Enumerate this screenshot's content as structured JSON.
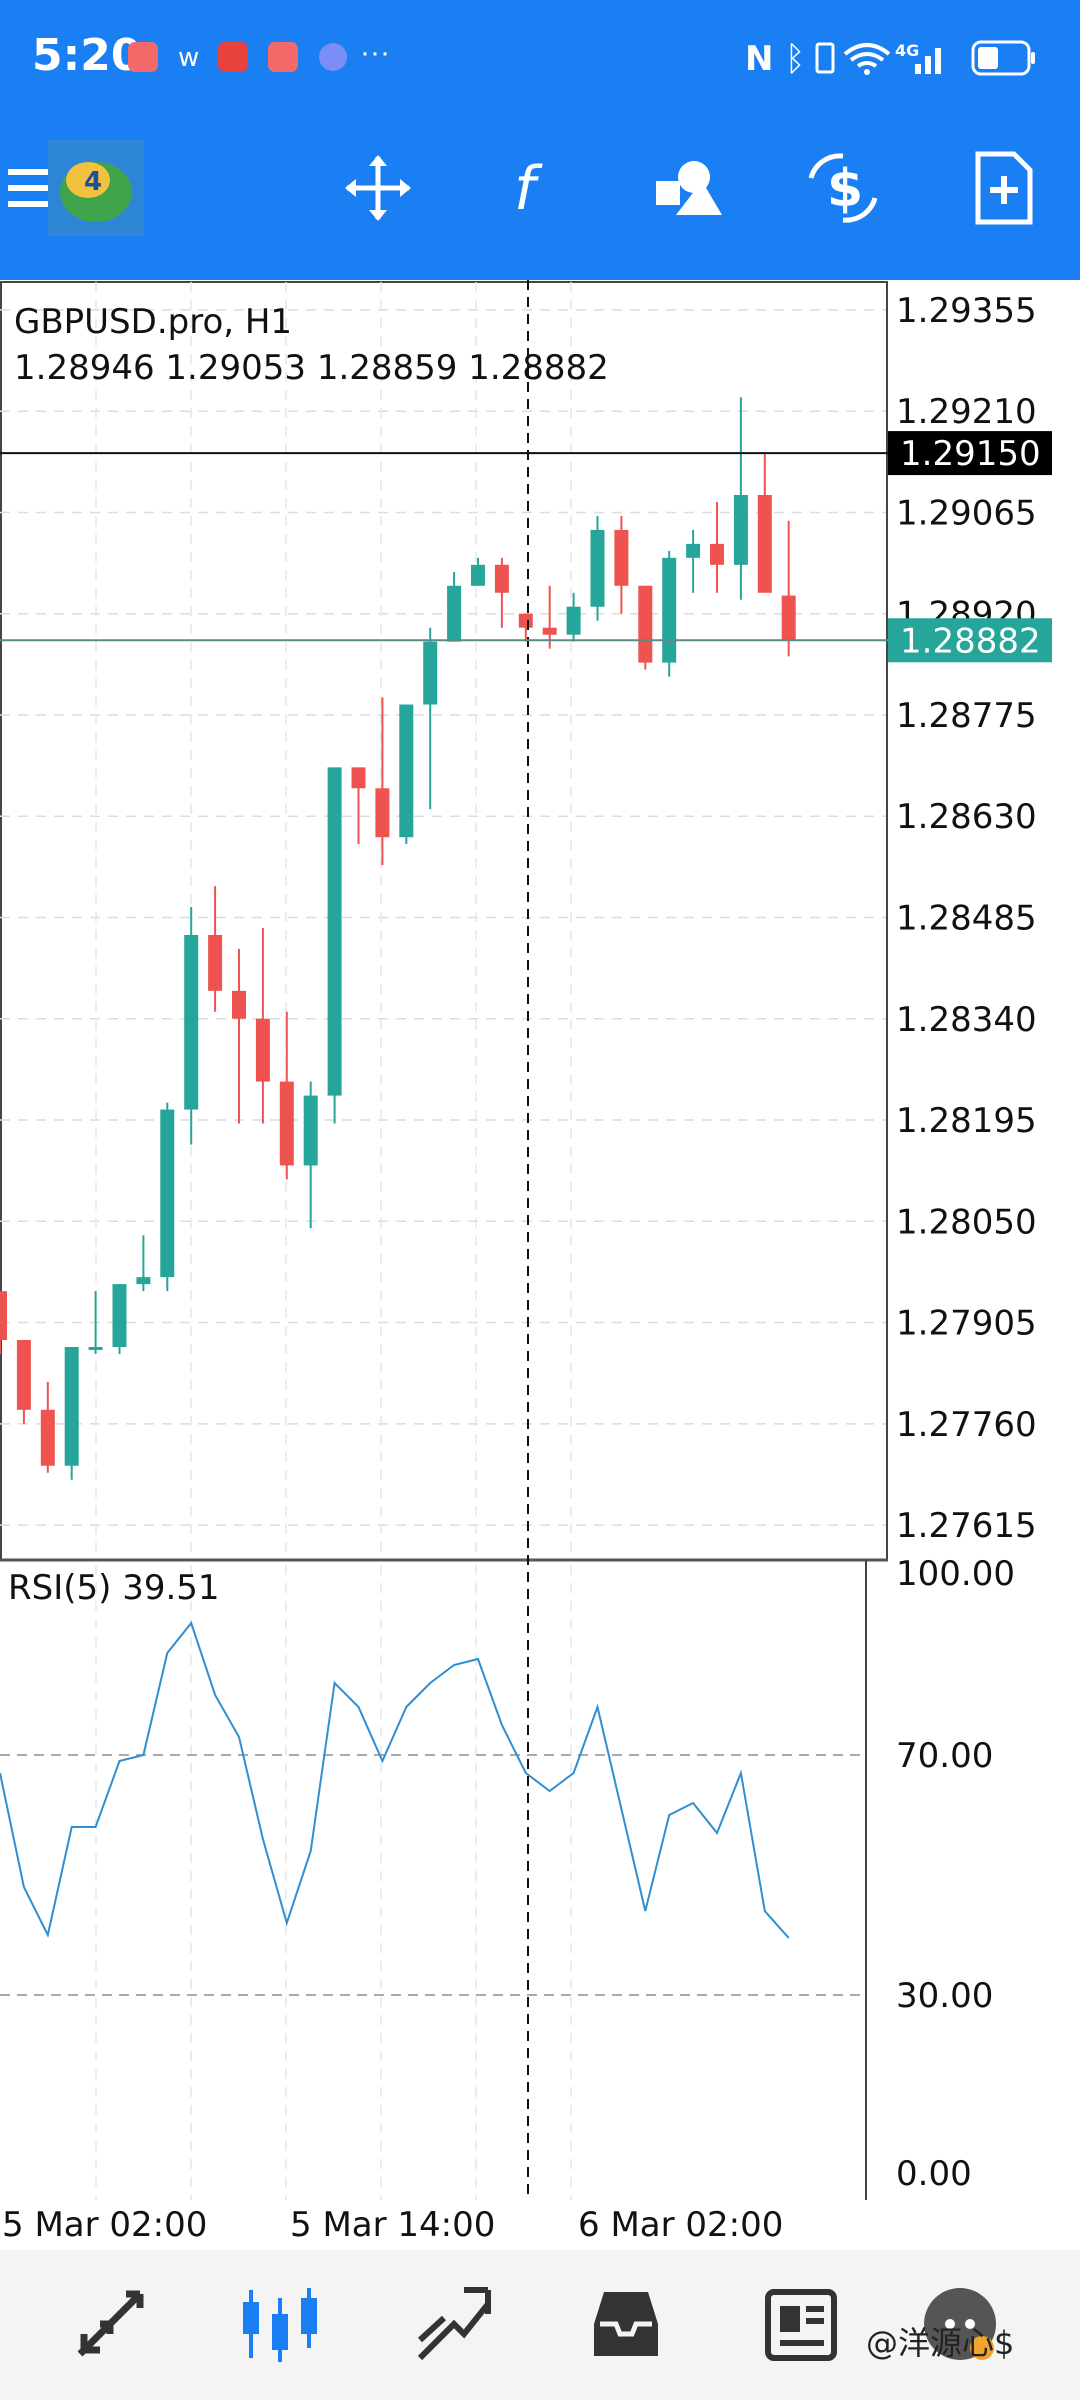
{
  "status_bar": {
    "time": "5:20",
    "icons": [
      "huawei-app-icon",
      "weibo-icon",
      "app-icon",
      "huawei-app-icon",
      "browser-icon",
      "more-icon",
      "nfc-icon",
      "bluetooth-icon",
      "vibrate-icon",
      "wifi-icon",
      "cellular-4g-icon",
      "battery-icon"
    ],
    "more": "···"
  },
  "toolbar": {
    "buttons": [
      "menu-icon",
      "mt4-logo",
      "crosshair-move-icon",
      "function-icon",
      "shapes-icon",
      "dollar-trade-icon",
      "new-document-icon"
    ]
  },
  "chart": {
    "symbol": "GBPUSD.pro, H1",
    "ohlc": "1.28946 1.29053 1.28859 1.28882",
    "price_labels": [
      "1.29355",
      "1.29210",
      "1.29065",
      "1.28920",
      "1.28775",
      "1.28630",
      "1.28485",
      "1.28340",
      "1.28195",
      "1.28050",
      "1.27905",
      "1.27760",
      "1.27615"
    ],
    "crosshair_price": "1.29150",
    "bid_price": "1.28882",
    "time_labels": [
      "5 Mar 02:00",
      "5 Mar 14:00",
      "6 Mar 02:00"
    ],
    "rsi_label": "RSI(5) 39.51",
    "rsi_levels": [
      "100.00",
      "70.00",
      "30.00",
      "0.00"
    ]
  },
  "chart_data": {
    "type": "candlestick",
    "symbol": "GBPUSD.pro",
    "timeframe": "H1",
    "ylim": [
      1.27565,
      1.29395
    ],
    "up_color": "#26a69a",
    "down_color": "#ef5350",
    "candles": [
      {
        "o": 1.2795,
        "h": 1.2795,
        "l": 1.2786,
        "c": 1.2788
      },
      {
        "o": 1.2788,
        "h": 1.2788,
        "l": 1.2776,
        "c": 1.2778
      },
      {
        "o": 1.2778,
        "h": 1.2782,
        "l": 1.2769,
        "c": 1.277
      },
      {
        "o": 1.277,
        "h": 1.2787,
        "l": 1.2768,
        "c": 1.2787
      },
      {
        "o": 1.2787,
        "h": 1.2795,
        "l": 1.2786,
        "c": 1.2787
      },
      {
        "o": 1.2787,
        "h": 1.2796,
        "l": 1.2786,
        "c": 1.2796
      },
      {
        "o": 1.2796,
        "h": 1.2803,
        "l": 1.2795,
        "c": 1.2797
      },
      {
        "o": 1.2797,
        "h": 1.2822,
        "l": 1.2795,
        "c": 1.2821
      },
      {
        "o": 1.2821,
        "h": 1.285,
        "l": 1.2816,
        "c": 1.2846
      },
      {
        "o": 1.2846,
        "h": 1.2853,
        "l": 1.2835,
        "c": 1.2838
      },
      {
        "o": 1.2838,
        "h": 1.2844,
        "l": 1.2819,
        "c": 1.2834
      },
      {
        "o": 1.2834,
        "h": 1.2847,
        "l": 1.2819,
        "c": 1.2825
      },
      {
        "o": 1.2825,
        "h": 1.2835,
        "l": 1.2811,
        "c": 1.2813
      },
      {
        "o": 1.2813,
        "h": 1.2825,
        "l": 1.2804,
        "c": 1.2823
      },
      {
        "o": 1.2823,
        "h": 1.287,
        "l": 1.2819,
        "c": 1.287
      },
      {
        "o": 1.287,
        "h": 1.287,
        "l": 1.2859,
        "c": 1.2867
      },
      {
        "o": 1.2867,
        "h": 1.288,
        "l": 1.2856,
        "c": 1.286
      },
      {
        "o": 1.286,
        "h": 1.2879,
        "l": 1.2859,
        "c": 1.2879
      },
      {
        "o": 1.2879,
        "h": 1.289,
        "l": 1.2864,
        "c": 1.2888
      },
      {
        "o": 1.2888,
        "h": 1.2898,
        "l": 1.2888,
        "c": 1.2896
      },
      {
        "o": 1.2896,
        "h": 1.29,
        "l": 1.2896,
        "c": 1.2899
      },
      {
        "o": 1.2899,
        "h": 1.29,
        "l": 1.289,
        "c": 1.2895
      },
      {
        "o": 1.2892,
        "h": 1.2892,
        "l": 1.2888,
        "c": 1.289
      },
      {
        "o": 1.289,
        "h": 1.2896,
        "l": 1.2887,
        "c": 1.2889
      },
      {
        "o": 1.2889,
        "h": 1.2895,
        "l": 1.2888,
        "c": 1.2893
      },
      {
        "o": 1.2893,
        "h": 1.2906,
        "l": 1.2891,
        "c": 1.2904
      },
      {
        "o": 1.2904,
        "h": 1.2906,
        "l": 1.2892,
        "c": 1.2896
      },
      {
        "o": 1.2896,
        "h": 1.2896,
        "l": 1.2884,
        "c": 1.2885
      },
      {
        "o": 1.2885,
        "h": 1.2901,
        "l": 1.2883,
        "c": 1.29
      },
      {
        "o": 1.29,
        "h": 1.2904,
        "l": 1.2895,
        "c": 1.2902
      },
      {
        "o": 1.2902,
        "h": 1.2908,
        "l": 1.2895,
        "c": 1.2899
      },
      {
        "o": 1.2899,
        "h": 1.2923,
        "l": 1.2894,
        "c": 1.2909
      },
      {
        "o": 1.2909,
        "h": 1.2915,
        "l": 1.2896,
        "c": 1.2895
      },
      {
        "o": 1.28946,
        "h": 1.29053,
        "l": 1.28859,
        "c": 1.28882
      }
    ],
    "rsi": {
      "name": "RSI(5)",
      "ylim": [
        0,
        100
      ],
      "levels": [
        70,
        30
      ],
      "values": [
        67,
        48,
        40,
        58,
        58,
        69,
        70,
        87,
        92,
        80,
        73,
        56,
        42,
        54,
        82,
        78,
        69,
        78,
        82,
        85,
        86,
        75,
        67,
        64,
        67,
        78,
        61,
        44,
        60,
        62,
        57,
        67,
        44,
        39.51
      ]
    },
    "time_labels": [
      "5 Mar 02:00",
      "5 Mar 14:00",
      "6 Mar 02:00"
    ],
    "crosshair_price": 1.2915,
    "bid_price": 1.28882
  },
  "nav": {
    "items": [
      "quotes-icon",
      "chart-icon",
      "trade-icon",
      "history-icon",
      "news-icon",
      "avatar-icon"
    ]
  },
  "watermark": "@洋源心$"
}
